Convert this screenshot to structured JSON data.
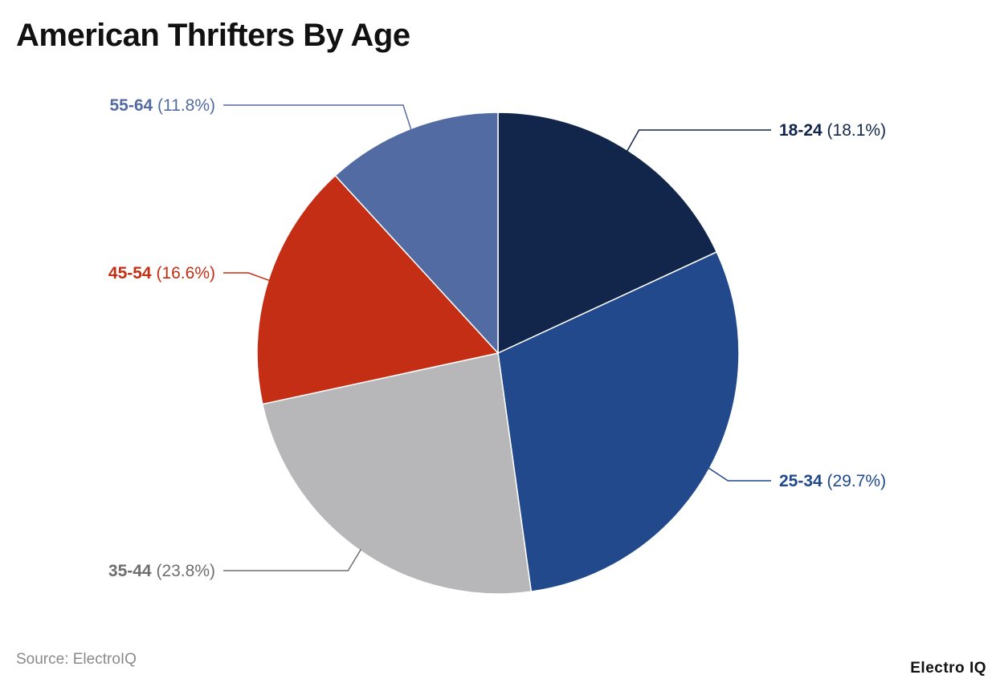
{
  "title": "American Thrifters By Age",
  "source": "Source: ElectroIQ",
  "logo": "Electro IQ",
  "chart_data": {
    "type": "pie",
    "title": "American Thrifters By Age",
    "start_angle_deg": 0,
    "direction": "clockwise",
    "slices": [
      {
        "label": "18-24",
        "value": 18.1,
        "pct_label": "(18.1%)",
        "color": "#12254a",
        "label_color": "#12254a"
      },
      {
        "label": "25-34",
        "value": 29.7,
        "pct_label": "(29.7%)",
        "color": "#21498c",
        "label_color": "#21498c"
      },
      {
        "label": "35-44",
        "value": 23.8,
        "pct_label": "(23.8%)",
        "color": "#b7b7b9",
        "label_color": "#6e6e6e"
      },
      {
        "label": "45-54",
        "value": 16.6,
        "pct_label": "(16.6%)",
        "color": "#c42e14",
        "label_color": "#c42e14"
      },
      {
        "label": "55-64",
        "value": 11.8,
        "pct_label": "(11.8%)",
        "color": "#536ba3",
        "label_color": "#536ba3"
      }
    ]
  }
}
